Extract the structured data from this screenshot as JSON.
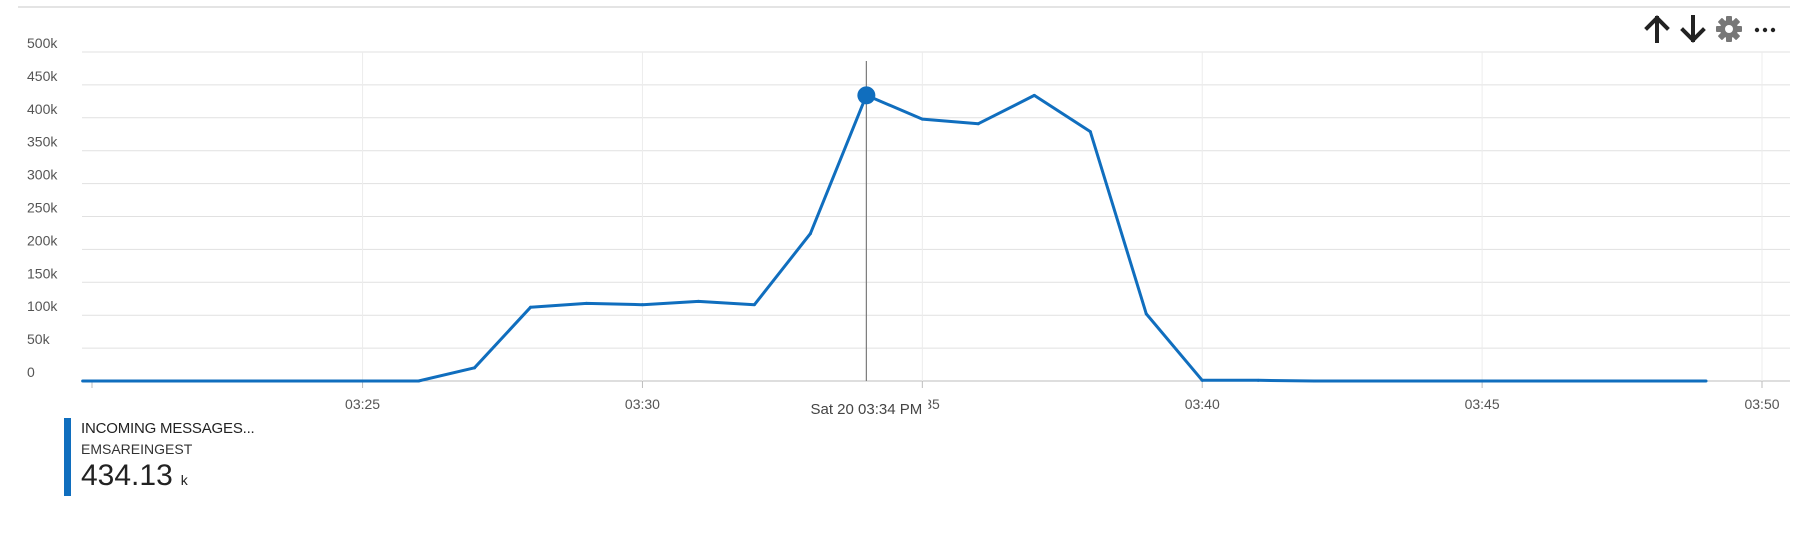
{
  "toolbar": {
    "icons": [
      "arrow-up-icon",
      "arrow-down-icon",
      "gear-icon",
      "more-icon"
    ]
  },
  "chart_data": {
    "type": "line",
    "x_ticks": [
      "03:25",
      "03:30",
      "03:35",
      "03:40",
      "03:45",
      "03:50"
    ],
    "y_ticks": [
      "0",
      "50k",
      "100k",
      "150k",
      "200k",
      "250k",
      "300k",
      "350k",
      "400k",
      "450k",
      "500k"
    ],
    "ylim": [
      0,
      500000
    ],
    "xlim": [
      "03:20:10",
      "03:50:30"
    ],
    "grid": true,
    "series": [
      {
        "color": "#106ebe",
        "points": [
          {
            "x": "03:20",
            "y": 0
          },
          {
            "x": "03:21",
            "y": 0
          },
          {
            "x": "03:22",
            "y": 0
          },
          {
            "x": "03:23",
            "y": 0
          },
          {
            "x": "03:24",
            "y": 0
          },
          {
            "x": "03:25",
            "y": 0
          },
          {
            "x": "03:26",
            "y": 0
          },
          {
            "x": "03:27",
            "y": 20000
          },
          {
            "x": "03:28",
            "y": 112000
          },
          {
            "x": "03:29",
            "y": 118000
          },
          {
            "x": "03:30",
            "y": 116000
          },
          {
            "x": "03:31",
            "y": 121000
          },
          {
            "x": "03:32",
            "y": 116000
          },
          {
            "x": "03:33",
            "y": 224000
          },
          {
            "x": "03:34",
            "y": 434130
          },
          {
            "x": "03:35",
            "y": 398000
          },
          {
            "x": "03:36",
            "y": 391000
          },
          {
            "x": "03:37",
            "y": 434000
          },
          {
            "x": "03:38",
            "y": 379000
          },
          {
            "x": "03:39",
            "y": 102000
          },
          {
            "x": "03:40",
            "y": 1000
          },
          {
            "x": "03:41",
            "y": 1000
          },
          {
            "x": "03:42",
            "y": 0
          },
          {
            "x": "03:43",
            "y": 0
          },
          {
            "x": "03:44",
            "y": 0
          },
          {
            "x": "03:45",
            "y": 0
          },
          {
            "x": "03:46",
            "y": 0
          },
          {
            "x": "03:47",
            "y": 0
          },
          {
            "x": "03:48",
            "y": 0
          },
          {
            "x": "03:49",
            "y": 0
          }
        ]
      }
    ],
    "cursor": {
      "x": "03:34",
      "label": "Sat 20 03:34 PM"
    }
  },
  "legend": {
    "name": "INCOMING MESSAGES...",
    "resource": "EMSAREINGEST",
    "value": "434.13",
    "unit": "k"
  }
}
